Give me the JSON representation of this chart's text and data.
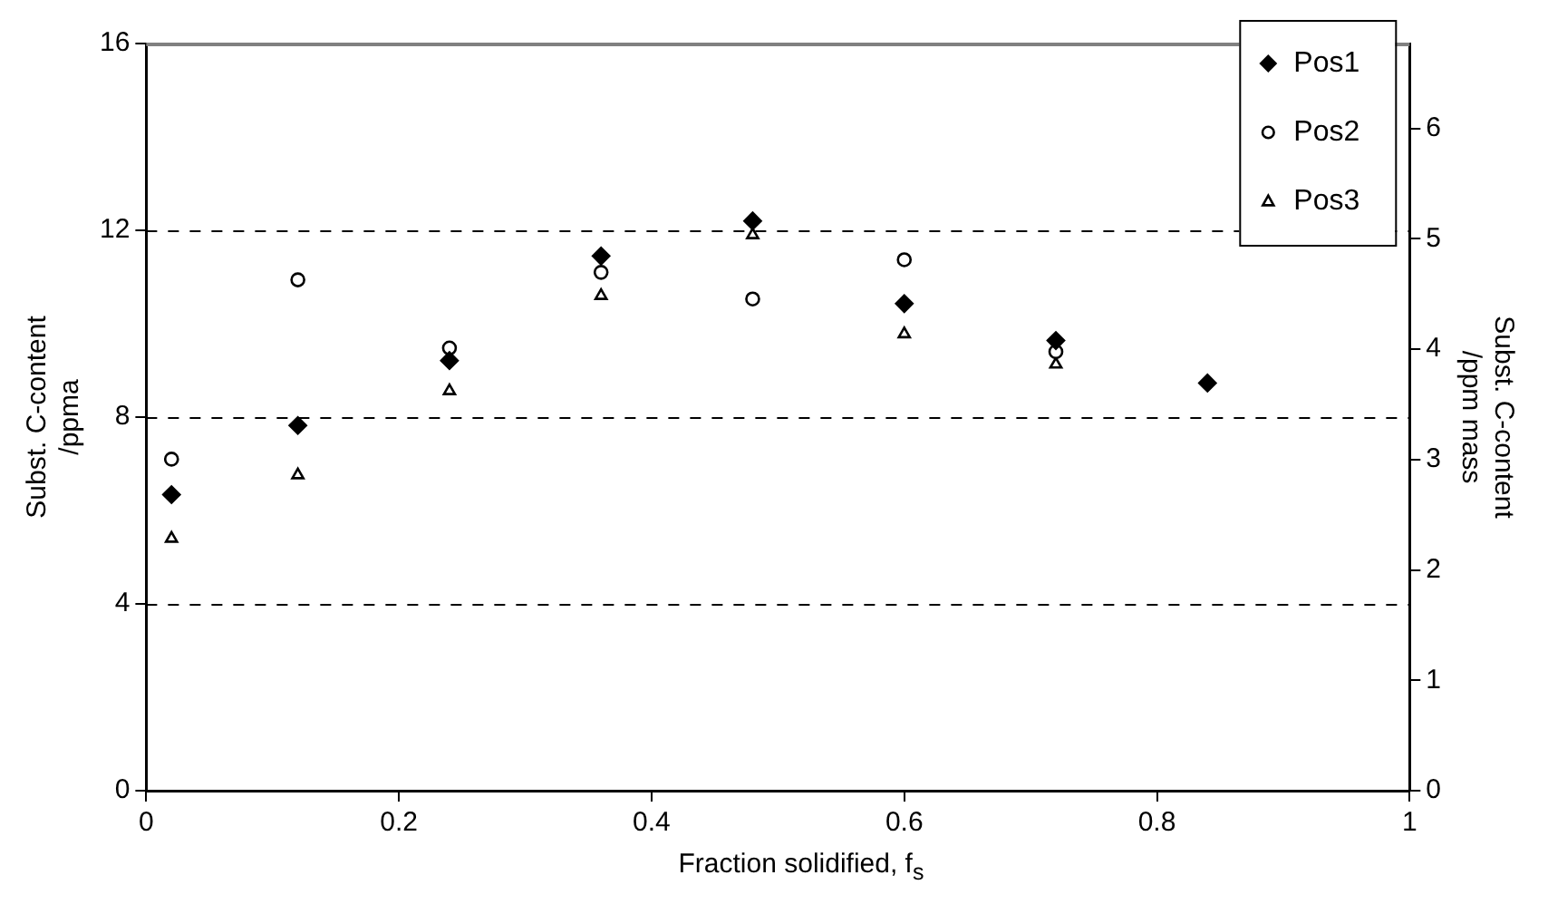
{
  "chart_data": {
    "type": "scatter",
    "xlabel": "Fraction solidified, f$_{s}$",
    "ylabel": "Subst. C-content\n/ppma",
    "y2label": "Subst. C-content\n/ppm mass",
    "x": [
      0.02,
      0.12,
      0.24,
      0.36,
      0.48,
      0.6,
      0.72,
      0.84
    ],
    "series": [
      {
        "name": "Pos1",
        "color": "#000000",
        "marker": "diamond",
        "values": [
          6.34,
          7.82,
          9.21,
          11.45,
          12.2,
          10.43,
          9.64,
          8.73
        ]
      },
      {
        "name": "Pos2",
        "color": "#000000",
        "marker": "circle",
        "values": [
          7.1,
          10.94,
          9.48,
          11.1,
          10.53,
          11.37,
          9.4,
          null
        ]
      },
      {
        "name": "Pos3",
        "color": "#000000",
        "marker": "triangle",
        "values": [
          5.4,
          6.76,
          8.56,
          10.6,
          11.9,
          9.78,
          9.13,
          null
        ]
      }
    ],
    "xlim": [
      0,
      1
    ],
    "xticks": [
      0,
      0.2,
      0.4,
      0.6,
      0.8,
      1
    ],
    "ylim": [
      0,
      16
    ],
    "yticks": [
      0,
      4,
      8,
      12,
      16
    ],
    "y2lim": [
      0,
      6.77
    ],
    "y2ticks": [
      0,
      1,
      2,
      3,
      4,
      5,
      6
    ],
    "grid": "y",
    "legend": "top right"
  }
}
